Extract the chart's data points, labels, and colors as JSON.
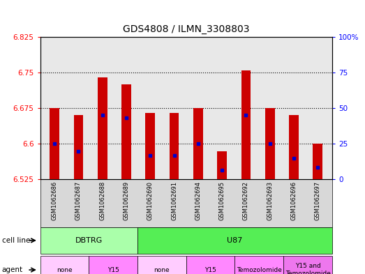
{
  "title": "GDS4808 / ILMN_3308803",
  "samples": [
    "GSM1062686",
    "GSM1062687",
    "GSM1062688",
    "GSM1062689",
    "GSM1062690",
    "GSM1062691",
    "GSM1062694",
    "GSM1062695",
    "GSM1062692",
    "GSM1062693",
    "GSM1062696",
    "GSM1062697"
  ],
  "bar_values": [
    6.675,
    6.66,
    6.74,
    6.725,
    6.665,
    6.665,
    6.675,
    6.585,
    6.755,
    6.675,
    6.66,
    6.6
  ],
  "percentile_values": [
    6.6,
    6.585,
    6.66,
    6.655,
    6.575,
    6.575,
    6.6,
    6.545,
    6.66,
    6.6,
    6.57,
    6.55
  ],
  "ylim": [
    6.525,
    6.825
  ],
  "yticks_left": [
    6.525,
    6.6,
    6.675,
    6.75,
    6.825
  ],
  "ytick_labels_left": [
    "6.525",
    "6.6",
    "6.675",
    "6.75",
    "6.825"
  ],
  "yticks_right_pct": [
    0,
    25,
    50,
    75,
    100
  ],
  "ytick_labels_right": [
    "0",
    "25",
    "50",
    "75",
    "100%"
  ],
  "bar_color": "#cc0000",
  "blue_color": "#0000cc",
  "base_value": 6.525,
  "grid_yticks": [
    6.6,
    6.675,
    6.75
  ],
  "plot_bg": "#e8e8e8",
  "cell_line_groups": [
    {
      "label": "DBTRG",
      "start": 0,
      "end": 4,
      "color": "#aaffaa"
    },
    {
      "label": "U87",
      "start": 4,
      "end": 12,
      "color": "#55ee55"
    }
  ],
  "agent_groups": [
    {
      "label": "none",
      "start": 0,
      "end": 2,
      "color": "#ffccff"
    },
    {
      "label": "Y15",
      "start": 2,
      "end": 4,
      "color": "#ff88ff"
    },
    {
      "label": "none",
      "start": 4,
      "end": 6,
      "color": "#ffccff"
    },
    {
      "label": "Y15",
      "start": 6,
      "end": 8,
      "color": "#ff88ff"
    },
    {
      "label": "Temozolomide",
      "start": 8,
      "end": 10,
      "color": "#ff88ff"
    },
    {
      "label": "Y15 and\nTemozolomide",
      "start": 10,
      "end": 12,
      "color": "#ee77ee"
    }
  ]
}
